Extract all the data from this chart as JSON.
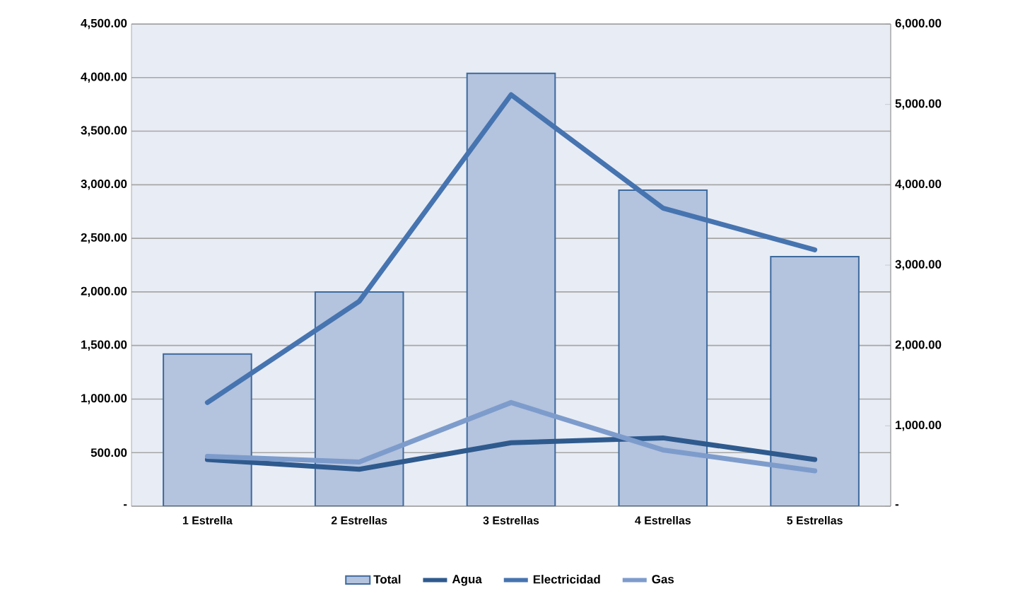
{
  "chart_data": {
    "type": "bar",
    "categories": [
      "1 Estrella",
      "2 Estrellas",
      "3 Estrellas",
      "4 Estrellas",
      "5 Estrellas"
    ],
    "series": [
      {
        "name": "Total",
        "axis": "y",
        "color": "#b4c3de",
        "values": [
          1420,
          2000,
          4040,
          2950,
          2330
        ]
      },
      {
        "name": "Agua",
        "type": "line",
        "axis": "y2",
        "color": "#2e5a8e",
        "values": [
          580,
          460,
          790,
          850,
          580
        ]
      },
      {
        "name": "Electricidad",
        "type": "line",
        "axis": "y2",
        "color": "#4674b0",
        "values": [
          1290,
          2550,
          5120,
          3710,
          3190
        ]
      },
      {
        "name": "Gas",
        "type": "line",
        "axis": "y2",
        "color": "#7d9ccc",
        "values": [
          620,
          550,
          1290,
          700,
          440
        ]
      }
    ],
    "ylim": [
      0,
      4500
    ],
    "yticks": [
      {
        "value": 0,
        "label": "-"
      },
      {
        "value": 500,
        "label": "500.00"
      },
      {
        "value": 1000,
        "label": "1,000.00"
      },
      {
        "value": 1500,
        "label": "1,500.00"
      },
      {
        "value": 2000,
        "label": "2,000.00"
      },
      {
        "value": 2500,
        "label": "2,500.00"
      },
      {
        "value": 3000,
        "label": "3,000.00"
      },
      {
        "value": 3500,
        "label": "3,500.00"
      },
      {
        "value": 4000,
        "label": "4,000.00"
      },
      {
        "value": 4500,
        "label": "4,500.00"
      }
    ],
    "y2lim": [
      0,
      6000
    ],
    "y2ticks": [
      {
        "value": 0,
        "label": "-"
      },
      {
        "value": 1000,
        "label": "1,000.00"
      },
      {
        "value": 2000,
        "label": "2,000.00"
      },
      {
        "value": 3000,
        "label": "3,000.00"
      },
      {
        "value": 4000,
        "label": "4,000.00"
      },
      {
        "value": 5000,
        "label": "5,000.00"
      },
      {
        "value": 6000,
        "label": "6,000.00"
      }
    ],
    "grid": "y",
    "legend": "bottom"
  }
}
